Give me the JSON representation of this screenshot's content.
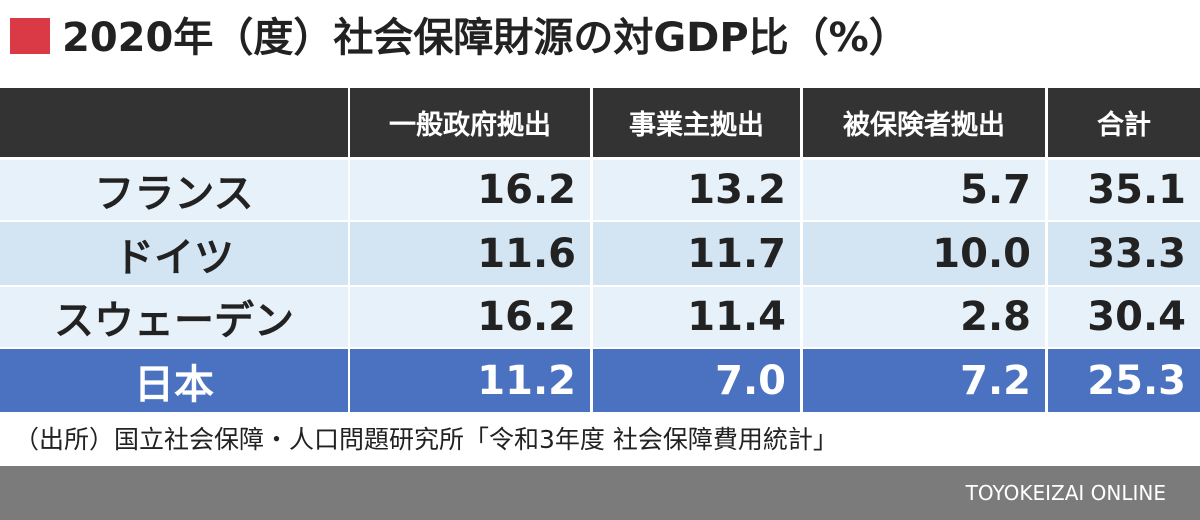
{
  "header": {
    "title": "2020年（度）社会保障財源の対GDP比（%）"
  },
  "table": {
    "columns": [
      "一般政府拠出",
      "事業主拠出",
      "被保険者拠出",
      "合計"
    ],
    "rows": [
      [
        "フランス",
        "16.2",
        "13.2",
        "5.7",
        "35.1"
      ],
      [
        "ドイツ",
        "11.6",
        "11.7",
        "10.0",
        "33.3"
      ],
      [
        "スウェーデン",
        "16.2",
        "11.4",
        "2.8",
        "30.4"
      ],
      [
        "日本",
        "11.2",
        "7.0",
        "7.2",
        "25.3"
      ]
    ]
  },
  "source": "（出所）国立社会保障・人口問題研究所「令和3年度 社会保障費用統計」",
  "footer": {
    "brand": "TOYOKEIZAI ONLINE"
  }
}
